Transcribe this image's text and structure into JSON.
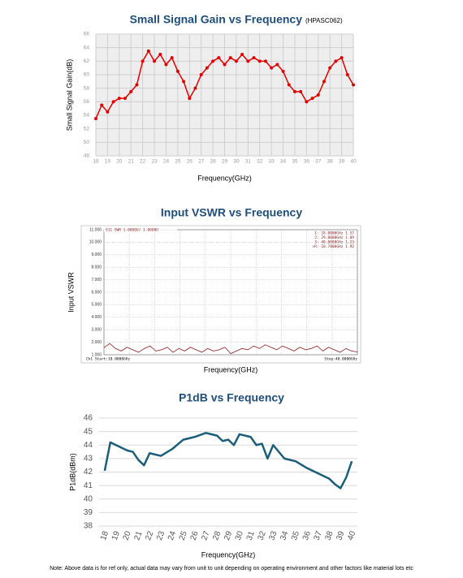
{
  "chart_data": [
    {
      "type": "line",
      "title": "Small Signal Gain vs Frequency",
      "subtitle": "(HPASC062)",
      "x_label": "Frequency(GHz)",
      "y_label": "Small Signal Gain(dB)",
      "color": "#e00000",
      "markers": true,
      "grid": true,
      "x": [
        18,
        18.5,
        19,
        19.5,
        20,
        20.5,
        21,
        21.5,
        22,
        22.5,
        23,
        23.5,
        24,
        24.5,
        25,
        25.5,
        26,
        26.5,
        27,
        27.5,
        28,
        28.5,
        29,
        29.5,
        30,
        30.5,
        31,
        31.5,
        32,
        32.5,
        33,
        33.5,
        34,
        34.5,
        35,
        35.5,
        36,
        36.5,
        37,
        37.5,
        38,
        38.5,
        39,
        39.5,
        40
      ],
      "values": [
        53.5,
        55.5,
        54.5,
        56,
        56.5,
        56.5,
        57.5,
        58.5,
        62,
        63.5,
        62,
        63,
        61.5,
        62.5,
        60.5,
        59,
        56.5,
        58,
        60,
        61,
        62,
        62.5,
        61.5,
        62.5,
        62,
        63,
        62,
        62.5,
        62,
        62,
        61,
        61.5,
        60.5,
        58.5,
        57.5,
        57.5,
        56,
        56.5,
        57,
        59,
        61,
        62,
        62.5,
        60,
        58.5
      ],
      "xlim": [
        18,
        40
      ],
      "xticks": [
        18,
        19,
        20,
        21,
        22,
        23,
        24,
        25,
        26,
        27,
        28,
        29,
        30,
        31,
        32,
        33,
        34,
        35,
        36,
        37,
        38,
        39,
        40
      ],
      "ylim": [
        48,
        66
      ],
      "yticks": [
        48,
        50,
        52,
        54,
        56,
        58,
        60,
        62,
        64,
        66
      ]
    },
    {
      "type": "line",
      "title": "Input VSWR vs Frequency",
      "x_label": "Frequency(GHz)",
      "y_label": "Input VSWR",
      "color": "#8b1a1a",
      "grid": true,
      "header": "S11 SWR 1.0000U/ 1.0000U",
      "annotations": [
        "1:  18.0000GHz 1.57",
        "2:  29.0000GHz 1.09",
        "3:  40.0000GHz 1.23",
        ">R:  18.7000GHz 1.92"
      ],
      "start_label": "Ch1 Start:18.0000GHz",
      "stop_label": "Stop:40.0000GHz",
      "x": [
        18,
        18.5,
        19,
        19.5,
        20,
        20.5,
        21,
        21.5,
        22,
        22.5,
        23,
        23.5,
        24,
        24.5,
        25,
        25.5,
        26,
        26.5,
        27,
        27.5,
        28,
        28.5,
        29,
        29.5,
        30,
        30.5,
        31,
        31.5,
        32,
        32.5,
        33,
        33.5,
        34,
        34.5,
        35,
        35.5,
        36,
        36.5,
        37,
        37.5,
        38,
        38.5,
        39,
        39.5,
        40
      ],
      "values": [
        1.57,
        1.9,
        1.5,
        1.3,
        1.6,
        1.4,
        1.2,
        1.5,
        1.7,
        1.3,
        1.4,
        1.6,
        1.2,
        1.5,
        1.3,
        1.6,
        1.4,
        1.2,
        1.5,
        1.3,
        1.4,
        1.6,
        1.09,
        1.3,
        1.5,
        1.4,
        1.7,
        1.5,
        1.8,
        1.6,
        1.4,
        1.7,
        1.5,
        1.3,
        1.6,
        1.4,
        1.5,
        1.7,
        1.3,
        1.6,
        1.4,
        1.2,
        1.5,
        1.3,
        1.23
      ],
      "xlim": [
        18,
        40
      ],
      "ylim": [
        1,
        11
      ],
      "yticks": [
        {
          "value": 1,
          "label": "1.000"
        },
        {
          "value": 2,
          "label": "2.000"
        },
        {
          "value": 3,
          "label": "3.000"
        },
        {
          "value": 4,
          "label": "4.000"
        },
        {
          "value": 5,
          "label": "5.000"
        },
        {
          "value": 6,
          "label": "6.000"
        },
        {
          "value": 7,
          "label": "7.000"
        },
        {
          "value": 8,
          "label": "8.000"
        },
        {
          "value": 9,
          "label": "9.000"
        },
        {
          "value": 10,
          "label": "10.000"
        },
        {
          "value": 11,
          "label": "11.000"
        }
      ]
    },
    {
      "type": "line",
      "title": "P1dB vs Frequency",
      "x_label": "Frequency(GHz)",
      "y_label": "P1dB(dBm)",
      "color": "#1b5e7a",
      "grid": true,
      "x": [
        18,
        18.5,
        19,
        20,
        20.5,
        21,
        21.5,
        22,
        23,
        24,
        25,
        26,
        27,
        28,
        28.5,
        29,
        29.5,
        30,
        31,
        31.5,
        32,
        32.5,
        33,
        34,
        35,
        36,
        37,
        38,
        38.5,
        39,
        39.5,
        40
      ],
      "values": [
        42.1,
        44.2,
        44.0,
        43.6,
        43.5,
        42.9,
        42.5,
        43.4,
        43.2,
        43.7,
        44.4,
        44.6,
        44.9,
        44.7,
        44.3,
        44.4,
        44.0,
        44.8,
        44.6,
        44.0,
        44.1,
        43.0,
        44.0,
        43.0,
        42.8,
        42.3,
        41.9,
        41.5,
        41.1,
        40.8,
        41.6,
        42.8
      ],
      "xlim": [
        17.5,
        40.5
      ],
      "xticks": [
        18,
        19,
        20,
        21,
        22,
        23,
        24,
        25,
        26,
        27,
        28,
        29,
        30,
        31,
        32,
        33,
        34,
        35,
        36,
        37,
        38,
        39,
        40
      ],
      "ylim": [
        38,
        46
      ],
      "yticks": [
        38,
        39,
        40,
        41,
        42,
        43,
        44,
        45,
        46
      ]
    }
  ],
  "note": "Note: Above data is for ref only, actual data may vary from unit to unit depending on operating environment and other factors like material lots etc"
}
